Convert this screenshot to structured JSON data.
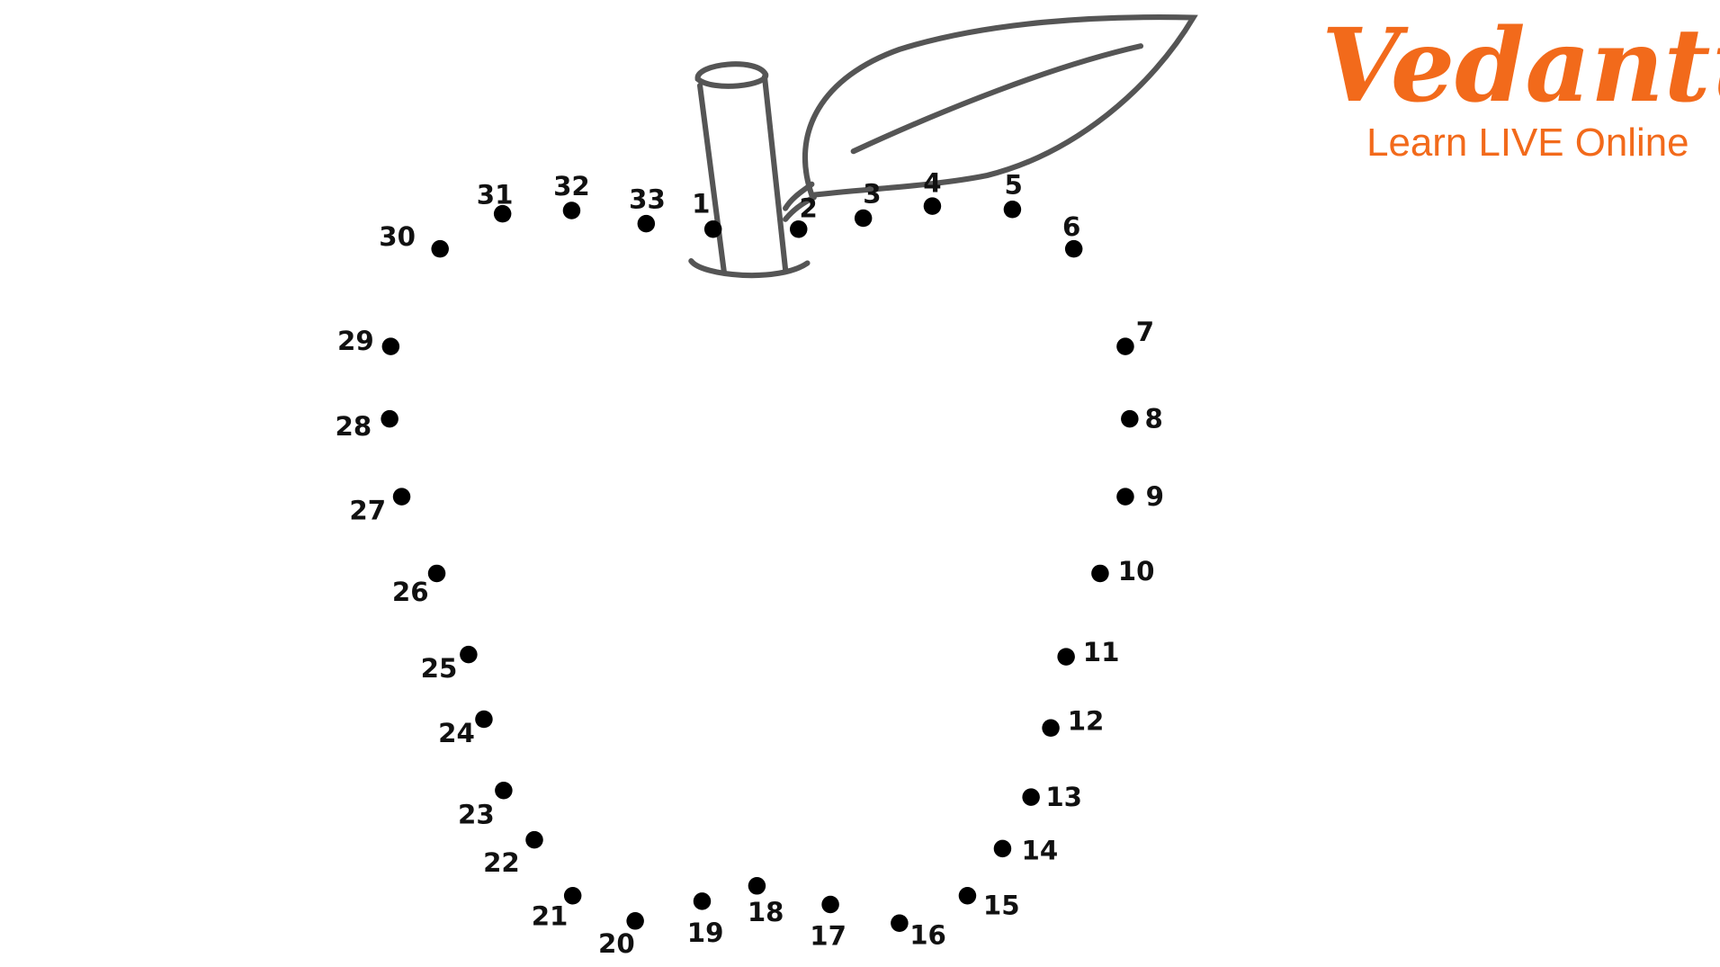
{
  "worksheet": {
    "dots": [
      "1",
      "2",
      "3",
      "4",
      "5",
      "6",
      "7",
      "8",
      "9",
      "10",
      "11",
      "12",
      "13",
      "14",
      "15",
      "16",
      "17",
      "18",
      "19",
      "20",
      "21",
      "22",
      "23",
      "24",
      "25",
      "26",
      "27",
      "28",
      "29",
      "30",
      "31",
      "32",
      "33"
    ],
    "drawing": [
      "apple-stem",
      "leaf"
    ]
  },
  "logo": {
    "brand": "Vedantu",
    "tagline": "Learn LIVE Online",
    "color": "#f26a1b"
  },
  "colors": {
    "dot": "#000000",
    "line": "#555555"
  }
}
